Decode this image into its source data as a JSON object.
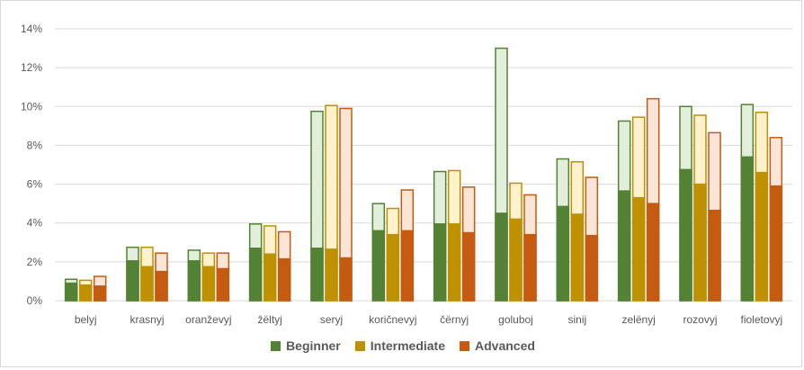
{
  "chart_data": {
    "type": "bar",
    "title": "",
    "xlabel": "",
    "ylabel": "",
    "ylim": [
      0,
      14
    ],
    "y_ticks": [
      "0%",
      "2%",
      "4%",
      "6%",
      "8%",
      "10%",
      "12%",
      "14%"
    ],
    "y_tick_values": [
      0,
      2,
      4,
      6,
      8,
      10,
      12,
      14
    ],
    "grid": true,
    "legend_position": "bottom",
    "categories": [
      "belyj",
      "krasnyj",
      "oranževyj",
      "žëltyj",
      "seryj",
      "koričnevyj",
      "čërnyj",
      "goluboj",
      "sinij",
      "zelënyj",
      "rozovyj",
      "fioletovyj"
    ],
    "series": [
      {
        "name": "Beginner",
        "color": "#548235",
        "light_color": "#e2efda",
        "solid_values": [
          0.9,
          2.05,
          2.05,
          2.7,
          2.7,
          3.6,
          3.95,
          4.5,
          4.85,
          5.65,
          6.75,
          7.4
        ],
        "total_values": [
          1.1,
          2.75,
          2.6,
          3.95,
          9.75,
          5.0,
          6.65,
          13.0,
          7.3,
          9.25,
          10.0,
          10.1
        ]
      },
      {
        "name": "Intermediate",
        "color": "#bf9000",
        "light_color": "#fff2cc",
        "solid_values": [
          0.8,
          1.75,
          1.75,
          2.4,
          2.65,
          3.4,
          3.95,
          4.2,
          4.45,
          5.3,
          6.0,
          6.6
        ],
        "total_values": [
          1.05,
          2.75,
          2.45,
          3.85,
          10.05,
          4.75,
          6.7,
          6.05,
          7.15,
          9.45,
          9.55,
          9.7
        ]
      },
      {
        "name": "Advanced",
        "color": "#c55a11",
        "light_color": "#fbe5d6",
        "solid_values": [
          0.75,
          1.5,
          1.65,
          2.15,
          2.2,
          3.6,
          3.5,
          3.4,
          3.35,
          5.0,
          4.65,
          5.9
        ],
        "total_values": [
          1.25,
          2.45,
          2.45,
          3.55,
          9.9,
          5.7,
          5.85,
          5.45,
          6.35,
          10.4,
          8.65,
          8.4
        ]
      }
    ]
  }
}
